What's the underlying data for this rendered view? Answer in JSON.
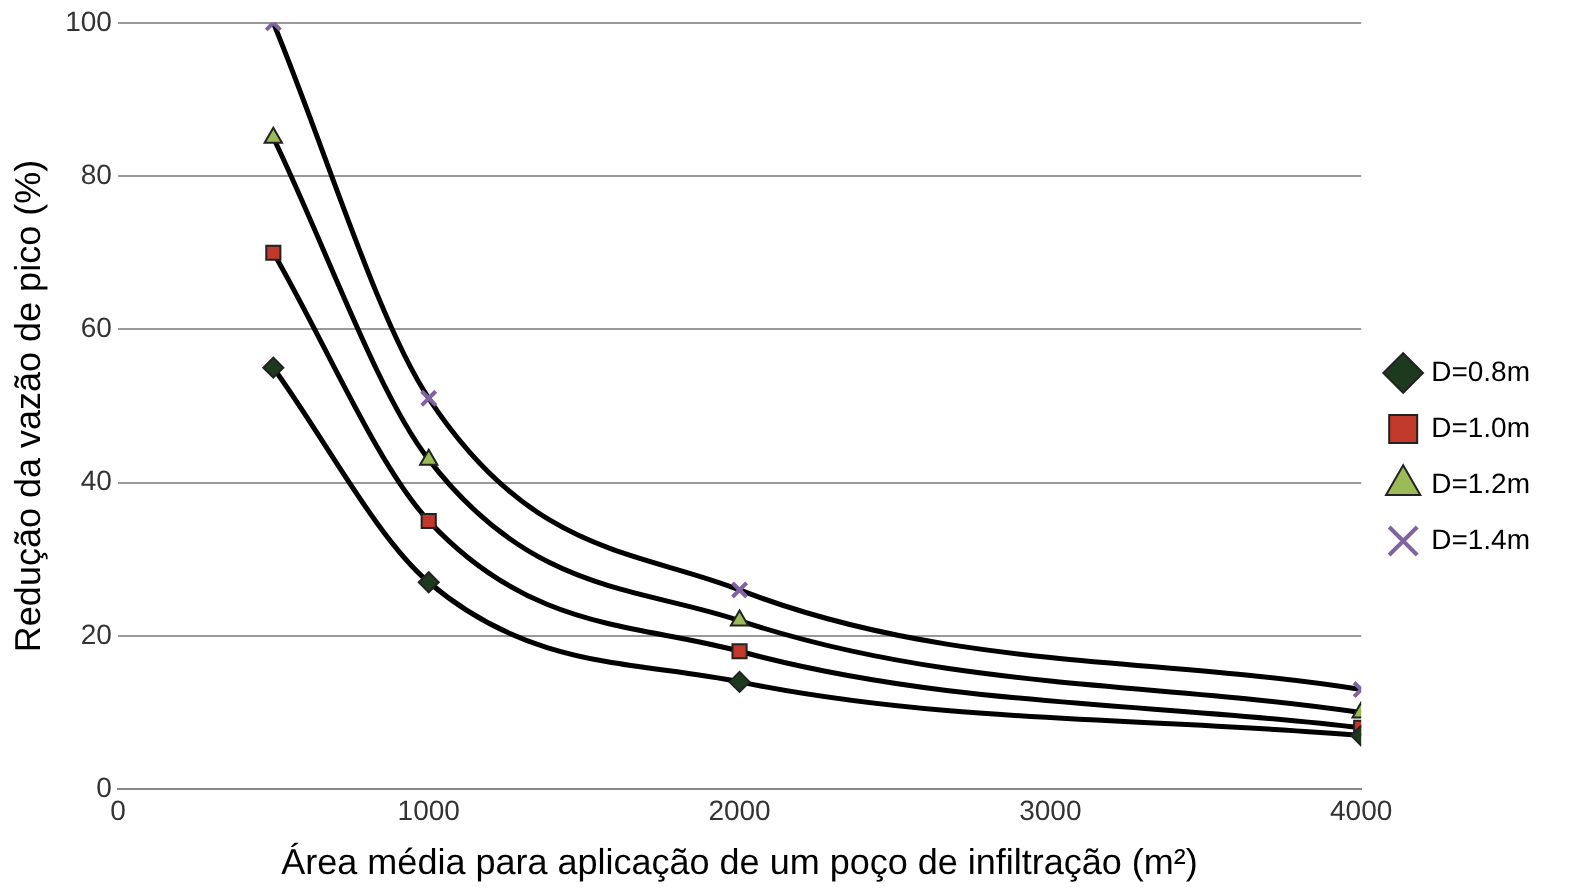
{
  "chart_data": {
    "type": "line",
    "xlabel": "Área média para aplicação de um poço de infiltração (m²)",
    "ylabel": "Redução da vazão de pico (%)",
    "x": [
      500,
      1000,
      2000,
      4000
    ],
    "xlim": [
      0,
      4000
    ],
    "xticks": [
      0,
      1000,
      2000,
      3000,
      4000
    ],
    "ylim": [
      0,
      100
    ],
    "yticks": [
      0,
      20,
      40,
      60,
      80,
      100
    ],
    "grid": "y",
    "legend": "right",
    "series": [
      {
        "name": "D=0.8m",
        "color": "#1e3a1e",
        "marker": "diamond",
        "values": [
          55,
          27,
          14,
          7
        ]
      },
      {
        "name": "D=1.0m",
        "color": "#c0392b",
        "marker": "square",
        "values": [
          70,
          35,
          18,
          8
        ]
      },
      {
        "name": "D=1.2m",
        "color": "#9bbb59",
        "marker": "triangle",
        "values": [
          85,
          43,
          22,
          10
        ]
      },
      {
        "name": "D=1.4m",
        "color": "#8064a2",
        "marker": "cross",
        "values": [
          100,
          51,
          26,
          13
        ]
      }
    ]
  }
}
